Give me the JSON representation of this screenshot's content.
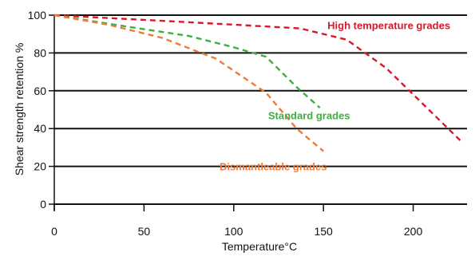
{
  "chart_data": {
    "type": "line",
    "title": "",
    "xlabel": "Temperature°C",
    "ylabel": "Shear strength retention %",
    "xlim": [
      0,
      230
    ],
    "ylim": [
      0,
      100
    ],
    "x_ticks": [
      "0",
      "50",
      "100",
      "150",
      "200"
    ],
    "x_tick_values": [
      0,
      50,
      100,
      150,
      200
    ],
    "y_ticks": [
      "0",
      "20",
      "40",
      "60",
      "80",
      "100"
    ],
    "y_tick_values": [
      0,
      20,
      40,
      60,
      80,
      100
    ],
    "grid": "horizontal",
    "line_style": "dashed",
    "series": [
      {
        "name": "High temperature grades",
        "color": "#d7192a",
        "x": [
          0,
          60,
          100,
          137,
          163,
          185,
          200,
          227
        ],
        "y": [
          100,
          97,
          95,
          93,
          87,
          72,
          58,
          33
        ]
      },
      {
        "name": "Standard grades",
        "color": "#3fae3f",
        "x": [
          0,
          40,
          75,
          100,
          118,
          135,
          148
        ],
        "y": [
          100,
          94,
          89,
          83,
          78,
          62,
          51
        ]
      },
      {
        "name": "Dismantleable grades",
        "color": "#f07a3a",
        "x": [
          0,
          30,
          60,
          90,
          118,
          135,
          150
        ],
        "y": [
          100,
          95,
          88,
          77,
          59,
          40,
          28
        ]
      }
    ]
  }
}
